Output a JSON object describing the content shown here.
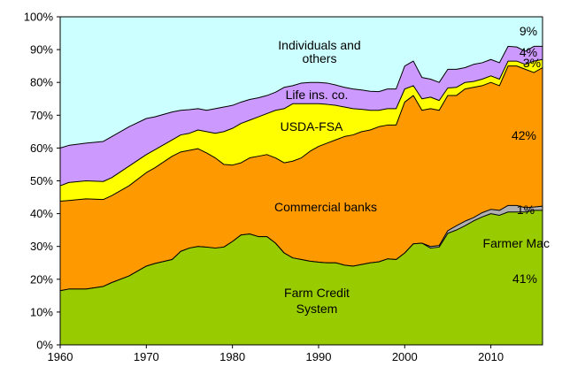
{
  "chart_data": {
    "type": "area",
    "stacked": true,
    "title": "",
    "xlabel": "",
    "ylabel": "",
    "xlim": [
      1960,
      2016
    ],
    "ylim": [
      0,
      100
    ],
    "x_ticks": [
      1960,
      1970,
      1980,
      1990,
      2000,
      2010
    ],
    "y_ticks": [
      0,
      10,
      20,
      30,
      40,
      50,
      60,
      70,
      80,
      90,
      100
    ],
    "y_tick_labels": [
      "0%",
      "10%",
      "20%",
      "30%",
      "40%",
      "50%",
      "60%",
      "70%",
      "80%",
      "90%",
      "100%"
    ],
    "note": "values are cumulative boundaries of each stacked layer (percent share)",
    "series": [
      {
        "name": "Farm Credit System",
        "color": "#99cc00",
        "points": [
          [
            1960,
            16.5
          ],
          [
            1961,
            17
          ],
          [
            1963,
            17
          ],
          [
            1965,
            17.8
          ],
          [
            1966,
            19
          ],
          [
            1968,
            21
          ],
          [
            1970,
            24
          ],
          [
            1971,
            24.8
          ],
          [
            1973,
            26
          ],
          [
            1974,
            28.5
          ],
          [
            1975,
            29.5
          ],
          [
            1976,
            30
          ],
          [
            1977,
            29.8
          ],
          [
            1978,
            29.5
          ],
          [
            1979,
            29.8
          ],
          [
            1980,
            31.5
          ],
          [
            1981,
            33.5
          ],
          [
            1982,
            33.8
          ],
          [
            1983,
            33
          ],
          [
            1984,
            33
          ],
          [
            1985,
            31
          ],
          [
            1986,
            28
          ],
          [
            1987,
            26.5
          ],
          [
            1988,
            26
          ],
          [
            1989,
            25.5
          ],
          [
            1990,
            25.2
          ],
          [
            1991,
            25
          ],
          [
            1992,
            25
          ],
          [
            1993,
            24.3
          ],
          [
            1994,
            24
          ],
          [
            1995,
            24.5
          ],
          [
            1996,
            25
          ],
          [
            1997,
            25.3
          ],
          [
            1998,
            26.2
          ],
          [
            1999,
            26
          ],
          [
            2000,
            28
          ],
          [
            2001,
            30.8
          ],
          [
            2002,
            31
          ],
          [
            2003,
            29.5
          ],
          [
            2004,
            29.8
          ],
          [
            2005,
            34
          ],
          [
            2006,
            35
          ],
          [
            2007,
            36.3
          ],
          [
            2008,
            37.8
          ],
          [
            2009,
            39
          ],
          [
            2010,
            40
          ],
          [
            2011,
            39.5
          ],
          [
            2012,
            40.5
          ],
          [
            2013,
            40.5
          ],
          [
            2014,
            40.5
          ],
          [
            2015,
            41
          ],
          [
            2016,
            41
          ]
        ]
      },
      {
        "name": "Farmer Mac",
        "color": "#b0b0b0",
        "points": [
          [
            1960,
            16.5
          ],
          [
            1961,
            17
          ],
          [
            1963,
            17
          ],
          [
            1965,
            17.8
          ],
          [
            1966,
            19
          ],
          [
            1968,
            21
          ],
          [
            1970,
            24
          ],
          [
            1971,
            24.8
          ],
          [
            1973,
            26
          ],
          [
            1974,
            28.5
          ],
          [
            1975,
            29.5
          ],
          [
            1976,
            30
          ],
          [
            1977,
            29.8
          ],
          [
            1978,
            29.5
          ],
          [
            1979,
            29.8
          ],
          [
            1980,
            31.5
          ],
          [
            1981,
            33.5
          ],
          [
            1982,
            33.8
          ],
          [
            1983,
            33
          ],
          [
            1984,
            33
          ],
          [
            1985,
            31
          ],
          [
            1986,
            28
          ],
          [
            1987,
            26.5
          ],
          [
            1988,
            26
          ],
          [
            1989,
            25.5
          ],
          [
            1990,
            25.2
          ],
          [
            1991,
            25
          ],
          [
            1992,
            25
          ],
          [
            1993,
            24.3
          ],
          [
            1994,
            24
          ],
          [
            1995,
            24.5
          ],
          [
            1996,
            25
          ],
          [
            1997,
            25.3
          ],
          [
            1998,
            26.2
          ],
          [
            1999,
            26
          ],
          [
            2000,
            28
          ],
          [
            2001,
            30.8
          ],
          [
            2002,
            31
          ],
          [
            2003,
            30
          ],
          [
            2004,
            30.3
          ],
          [
            2005,
            34.8
          ],
          [
            2006,
            36.3
          ],
          [
            2007,
            37.7
          ],
          [
            2008,
            38.8
          ],
          [
            2009,
            40.3
          ],
          [
            2010,
            41.3
          ],
          [
            2011,
            41
          ],
          [
            2012,
            42.5
          ],
          [
            2013,
            42.5
          ],
          [
            2014,
            41.8
          ],
          [
            2015,
            42
          ],
          [
            2016,
            42.3
          ]
        ]
      },
      {
        "name": "Commercial banks",
        "color": "#ff9900",
        "points": [
          [
            1960,
            43.8
          ],
          [
            1961,
            44
          ],
          [
            1963,
            44.5
          ],
          [
            1965,
            44.3
          ],
          [
            1966,
            45.5
          ],
          [
            1968,
            48.5
          ],
          [
            1970,
            52.5
          ],
          [
            1971,
            54
          ],
          [
            1973,
            57.5
          ],
          [
            1974,
            58.8
          ],
          [
            1975,
            59.3
          ],
          [
            1976,
            59.8
          ],
          [
            1977,
            58.5
          ],
          [
            1978,
            57
          ],
          [
            1979,
            55
          ],
          [
            1980,
            54.8
          ],
          [
            1981,
            55.5
          ],
          [
            1982,
            57
          ],
          [
            1983,
            57.5
          ],
          [
            1984,
            58
          ],
          [
            1985,
            57
          ],
          [
            1986,
            55.5
          ],
          [
            1987,
            56
          ],
          [
            1988,
            57
          ],
          [
            1989,
            59
          ],
          [
            1990,
            60.5
          ],
          [
            1991,
            61.5
          ],
          [
            1992,
            62.5
          ],
          [
            1993,
            63.5
          ],
          [
            1994,
            64
          ],
          [
            1995,
            65
          ],
          [
            1996,
            65.5
          ],
          [
            1997,
            66.5
          ],
          [
            1998,
            67
          ],
          [
            1999,
            67
          ],
          [
            2000,
            74
          ],
          [
            2001,
            76
          ],
          [
            2002,
            71.5
          ],
          [
            2003,
            72
          ],
          [
            2004,
            71.5
          ],
          [
            2005,
            76
          ],
          [
            2006,
            76
          ],
          [
            2007,
            78
          ],
          [
            2008,
            78.5
          ],
          [
            2009,
            79
          ],
          [
            2010,
            80
          ],
          [
            2011,
            79
          ],
          [
            2012,
            85
          ],
          [
            2013,
            85
          ],
          [
            2014,
            84
          ],
          [
            2015,
            83
          ],
          [
            2016,
            84.5
          ]
        ]
      },
      {
        "name": "USDA-FSA",
        "color": "#ffff00",
        "points": [
          [
            1960,
            48.5
          ],
          [
            1961,
            49.5
          ],
          [
            1963,
            50
          ],
          [
            1965,
            49.8
          ],
          [
            1966,
            51
          ],
          [
            1968,
            54.5
          ],
          [
            1970,
            58
          ],
          [
            1971,
            59.5
          ],
          [
            1973,
            62.5
          ],
          [
            1974,
            64
          ],
          [
            1975,
            64.5
          ],
          [
            1976,
            65.5
          ],
          [
            1977,
            65
          ],
          [
            1978,
            64.5
          ],
          [
            1979,
            65
          ],
          [
            1980,
            66
          ],
          [
            1981,
            67.5
          ],
          [
            1982,
            68.5
          ],
          [
            1983,
            69.5
          ],
          [
            1984,
            70.5
          ],
          [
            1985,
            71.5
          ],
          [
            1986,
            72
          ],
          [
            1987,
            73.5
          ],
          [
            1988,
            73.5
          ],
          [
            1989,
            73.5
          ],
          [
            1990,
            73.5
          ],
          [
            1991,
            73.3
          ],
          [
            1992,
            73
          ],
          [
            1993,
            72.5
          ],
          [
            1994,
            72
          ],
          [
            1995,
            71.8
          ],
          [
            1996,
            71.5
          ],
          [
            1997,
            71.5
          ],
          [
            1998,
            72
          ],
          [
            1999,
            72
          ],
          [
            2000,
            78
          ],
          [
            2001,
            79
          ],
          [
            2002,
            75
          ],
          [
            2003,
            75.5
          ],
          [
            2004,
            74.5
          ],
          [
            2005,
            78.3
          ],
          [
            2006,
            78.5
          ],
          [
            2007,
            80
          ],
          [
            2008,
            80.3
          ],
          [
            2009,
            81
          ],
          [
            2010,
            82
          ],
          [
            2011,
            81
          ],
          [
            2012,
            86.5
          ],
          [
            2013,
            86.5
          ],
          [
            2014,
            85.5
          ],
          [
            2015,
            86.5
          ],
          [
            2016,
            87
          ]
        ]
      },
      {
        "name": "Life ins. co.",
        "color": "#cc99ff",
        "points": [
          [
            1960,
            60
          ],
          [
            1961,
            60.8
          ],
          [
            1963,
            61.5
          ],
          [
            1965,
            62
          ],
          [
            1966,
            63.5
          ],
          [
            1968,
            66.5
          ],
          [
            1970,
            69
          ],
          [
            1971,
            69.5
          ],
          [
            1973,
            71
          ],
          [
            1974,
            71.5
          ],
          [
            1975,
            71.7
          ],
          [
            1976,
            72
          ],
          [
            1977,
            71.5
          ],
          [
            1978,
            72
          ],
          [
            1979,
            72.5
          ],
          [
            1980,
            73
          ],
          [
            1981,
            74
          ],
          [
            1982,
            74.8
          ],
          [
            1983,
            75.3
          ],
          [
            1984,
            76
          ],
          [
            1985,
            77
          ],
          [
            1986,
            78.5
          ],
          [
            1987,
            79
          ],
          [
            1988,
            79.8
          ],
          [
            1989,
            80
          ],
          [
            1990,
            80
          ],
          [
            1991,
            79.8
          ],
          [
            1992,
            79.2
          ],
          [
            1993,
            78.5
          ],
          [
            1994,
            78
          ],
          [
            1995,
            77.7
          ],
          [
            1996,
            77.3
          ],
          [
            1997,
            77.2
          ],
          [
            1998,
            78
          ],
          [
            1999,
            78
          ],
          [
            2000,
            85
          ],
          [
            2001,
            86.5
          ],
          [
            2002,
            81.5
          ],
          [
            2003,
            81
          ],
          [
            2004,
            80
          ],
          [
            2005,
            84
          ],
          [
            2006,
            84
          ],
          [
            2007,
            84.5
          ],
          [
            2008,
            85.5
          ],
          [
            2009,
            86
          ],
          [
            2010,
            87
          ],
          [
            2011,
            86
          ],
          [
            2012,
            91
          ],
          [
            2013,
            90.8
          ],
          [
            2014,
            89.5
          ],
          [
            2015,
            91
          ],
          [
            2016,
            91
          ]
        ]
      },
      {
        "name": "Individuals and others",
        "color": "#ccffff",
        "points": [
          [
            1960,
            100
          ],
          [
            2016,
            100
          ]
        ]
      }
    ],
    "labels": {
      "individuals": [
        "Individuals and",
        "others"
      ],
      "life": "Life ins. co.",
      "usda": "USDA-FSA",
      "banks": "Commercial banks",
      "fcs": [
        "Farm Credit",
        "System"
      ],
      "farmer_mac": "Farmer Mac",
      "pct_individuals": "9%",
      "pct_life": "4%",
      "pct_usda": "3%",
      "pct_banks": "42%",
      "pct_farmer_mac": "1%",
      "pct_fcs": "41%"
    }
  }
}
